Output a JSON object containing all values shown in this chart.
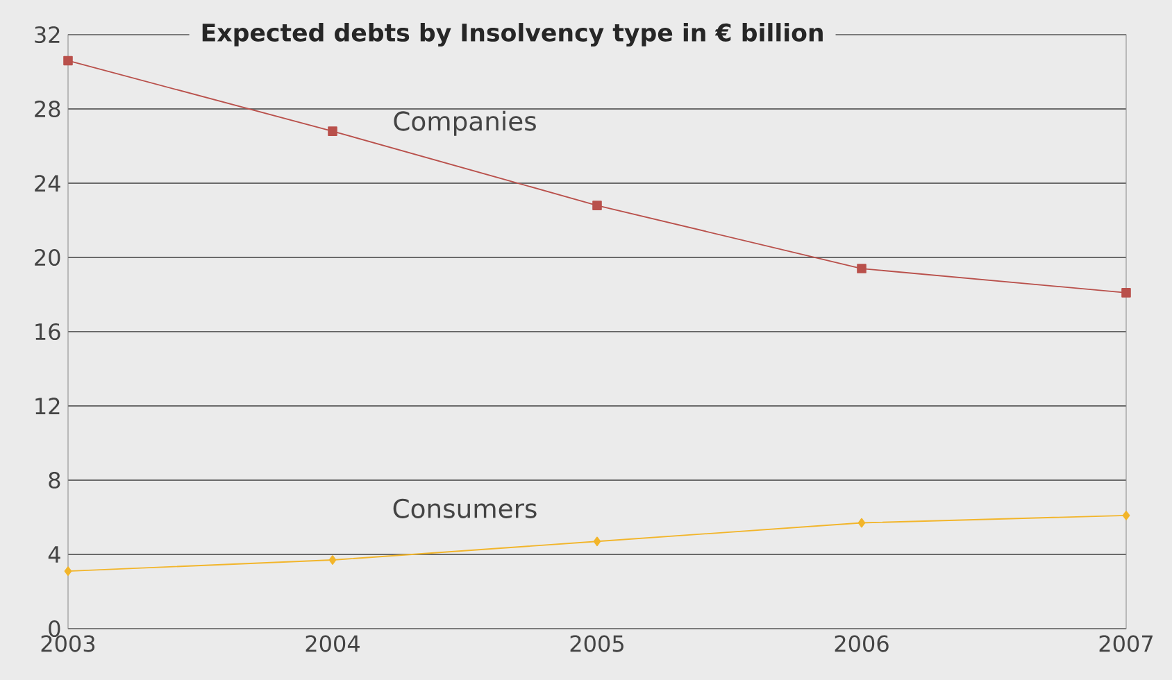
{
  "chart_data": {
    "type": "line",
    "title": "Expected debts by Insolvency type in € billion",
    "x": [
      2003,
      2004,
      2005,
      2006,
      2007
    ],
    "series": [
      {
        "name": "Companies",
        "color": "#b9504b",
        "marker": "square",
        "values": [
          30.6,
          26.8,
          22.8,
          19.4,
          18.1
        ]
      },
      {
        "name": "Consumers",
        "color": "#f2b52a",
        "marker": "diamond",
        "values": [
          3.1,
          3.7,
          4.7,
          5.7,
          6.1
        ]
      }
    ],
    "xlim": [
      2003,
      2007
    ],
    "xticks": [
      2003,
      2004,
      2005,
      2006,
      2007
    ],
    "ylim": [
      0,
      32
    ],
    "yticks": [
      0,
      4,
      8,
      12,
      16,
      20,
      24,
      28,
      32
    ],
    "grid": "y"
  }
}
